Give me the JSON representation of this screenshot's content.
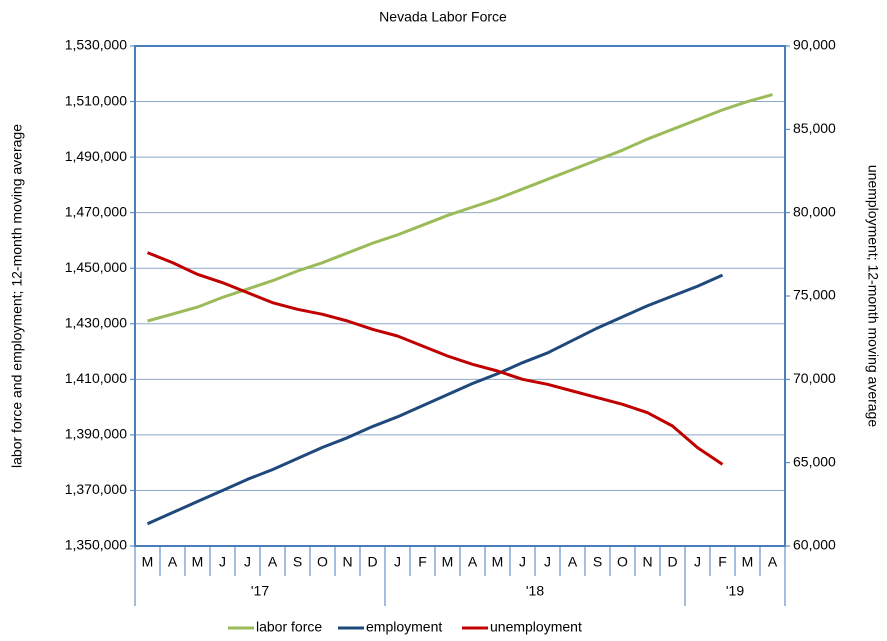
{
  "chart_data": {
    "type": "line",
    "title": "Nevada Labor Force",
    "y_label": "labor force and employment; 12-month moving average",
    "y2_label": "unemployment; 12-month moving average",
    "categories": [
      "M",
      "A",
      "M",
      "J",
      "J",
      "A",
      "S",
      "O",
      "N",
      "D",
      "J",
      "F",
      "M",
      "A",
      "M",
      "J",
      "J",
      "A",
      "S",
      "O",
      "N",
      "D",
      "J",
      "F",
      "M",
      "A"
    ],
    "x_groups": [
      {
        "label": "'17",
        "count": 10
      },
      {
        "label": "'18",
        "count": 12
      },
      {
        "label": "'19",
        "count": 4
      }
    ],
    "ylim": [
      1350000,
      1530000
    ],
    "yticks": [
      {
        "value": 1350000,
        "label": "1,350,000"
      },
      {
        "value": 1370000,
        "label": "1,370,000"
      },
      {
        "value": 1390000,
        "label": "1,390,000"
      },
      {
        "value": 1410000,
        "label": "1,410,000"
      },
      {
        "value": 1430000,
        "label": "1,430,000"
      },
      {
        "value": 1450000,
        "label": "1,450,000"
      },
      {
        "value": 1470000,
        "label": "1,470,000"
      },
      {
        "value": 1490000,
        "label": "1,490,000"
      },
      {
        "value": 1510000,
        "label": "1,510,000"
      },
      {
        "value": 1530000,
        "label": "1,530,000"
      }
    ],
    "y2lim": [
      60000,
      90000
    ],
    "y2ticks": [
      {
        "value": 60000,
        "label": "60,000"
      },
      {
        "value": 65000,
        "label": "65,000"
      },
      {
        "value": 70000,
        "label": "70,000"
      },
      {
        "value": 75000,
        "label": "75,000"
      },
      {
        "value": 80000,
        "label": "80,000"
      },
      {
        "value": 85000,
        "label": "85,000"
      },
      {
        "value": 90000,
        "label": "90,000"
      }
    ],
    "grid": true,
    "legend": "bottom",
    "series": [
      {
        "name": "labor force",
        "color": "#9bbb59",
        "values": [
          1431000,
          1433500,
          1436000,
          1439500,
          1442500,
          1445500,
          1449000,
          1452000,
          1455500,
          1459000,
          1462000,
          1465500,
          1469000,
          1472000,
          1475000,
          1478500,
          1482000,
          1485500,
          1489000,
          1492500,
          1496500,
          1500000,
          1503500,
          1507000,
          1510000,
          1512500
        ]
      },
      {
        "name": "employment",
        "color": "#1f497d",
        "values": [
          1358000,
          1362000,
          1366000,
          1370000,
          1374000,
          1377500,
          1381500,
          1385500,
          1389000,
          1393000,
          1396500,
          1400500,
          1404500,
          1408500,
          1412000,
          1416000,
          1419500,
          1424000,
          1428500,
          1432500,
          1436500,
          1440000,
          1443500,
          1447500,
          null,
          null
        ]
      },
      {
        "name": "unemployment",
        "color": "#c00000",
        "axis": "y2",
        "values": [
          77600,
          77000,
          76300,
          75800,
          75200,
          74600,
          74200,
          73900,
          73500,
          73000,
          72600,
          72000,
          71400,
          70900,
          70500,
          70000,
          69700,
          69300,
          68900,
          68500,
          68000,
          67200,
          65900,
          64900,
          null,
          null
        ]
      }
    ]
  }
}
